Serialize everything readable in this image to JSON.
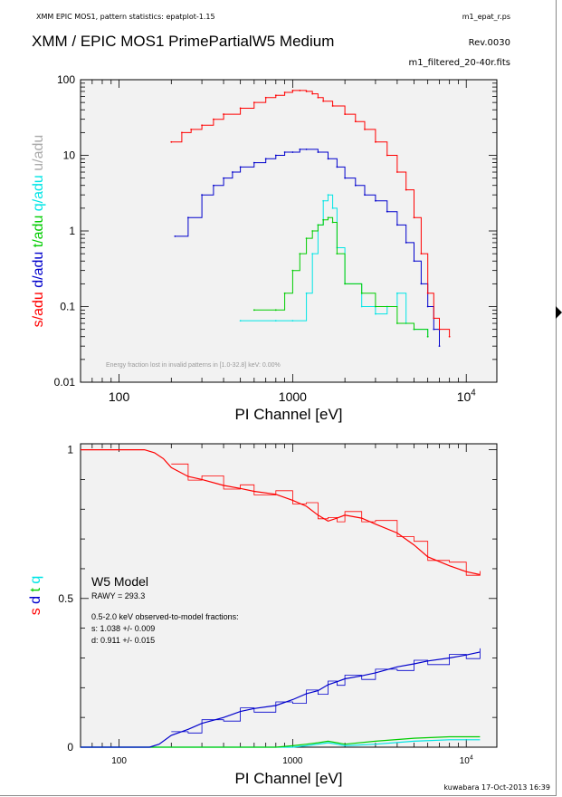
{
  "header": {
    "program": "XMM EPIC MOS1, pattern statistics: epatplot-1.15",
    "file": "m1_epat_r.ps",
    "title": "XMM / EPIC MOS1 PrimePartialW5 Medium",
    "rev": "Rev.0030",
    "input_file": "m1_filtered_20-40r.fits"
  },
  "footer": "kuwabara  17-Oct-2013 16:39",
  "colors": {
    "s": "#ff0000",
    "d": "#0000cc",
    "t": "#00cc00",
    "q": "#00e5e5",
    "u": "#aaaaaa",
    "bg": "#f2f2f2"
  },
  "chart_data": [
    {
      "type": "line",
      "xlabel": "PI Channel [eV]",
      "xscale": "log",
      "yscale": "log",
      "xlim": [
        60,
        15000
      ],
      "ylim": [
        0.01,
        100
      ],
      "xticks": [
        "100",
        "1000",
        "10^4"
      ],
      "yticks": [
        "0.01",
        "0.1",
        "1",
        "10",
        "100"
      ],
      "ylabels": [
        {
          "text": "s/adu",
          "color": "#ff0000"
        },
        {
          "text": "d/adu",
          "color": "#0000cc"
        },
        {
          "text": "t/adu",
          "color": "#00cc00"
        },
        {
          "text": "q/adu",
          "color": "#00e5e5"
        },
        {
          "text": "u/adu",
          "color": "#aaaaaa"
        }
      ],
      "annotation": "Energy fraction lost in invalid patterns in [1.0-32.8] keV:  0.00%",
      "series": [
        {
          "key": "s",
          "color": "#ff0000",
          "x": [
            200,
            230,
            260,
            300,
            350,
            400,
            500,
            600,
            700,
            800,
            900,
            1000,
            1100,
            1200,
            1300,
            1400,
            1500,
            1700,
            2000,
            2300,
            2600,
            3000,
            3500,
            4000,
            4500,
            5000,
            5500,
            6000,
            6500,
            7000,
            8000
          ],
          "y": [
            15,
            20,
            22,
            25,
            30,
            35,
            42,
            50,
            58,
            62,
            68,
            72,
            72,
            70,
            65,
            58,
            52,
            45,
            35,
            28,
            22,
            15,
            10,
            6,
            3.5,
            1.5,
            0.5,
            0.15,
            0.07,
            0.05,
            0.04
          ]
        },
        {
          "key": "d",
          "color": "#0000cc",
          "x": [
            210,
            250,
            300,
            350,
            400,
            450,
            500,
            600,
            700,
            800,
            900,
            1000,
            1100,
            1200,
            1400,
            1600,
            1800,
            2000,
            2300,
            2600,
            3000,
            3500,
            4000,
            4500,
            5000,
            5500,
            6000,
            6500,
            7000
          ],
          "y": [
            0.85,
            1.5,
            3,
            4,
            5,
            6,
            7,
            8,
            9,
            10,
            11,
            11,
            12,
            12,
            11,
            9,
            7,
            5,
            4,
            3,
            2.5,
            1.8,
            1.2,
            0.7,
            0.4,
            0.2,
            0.1,
            0.05,
            0.03
          ]
        },
        {
          "key": "t",
          "color": "#00cc00",
          "x": [
            600,
            800,
            900,
            1000,
            1100,
            1200,
            1300,
            1400,
            1500,
            1600,
            1700,
            1800,
            2000,
            2500,
            3000,
            4000,
            5000,
            6000
          ],
          "y": [
            0.09,
            0.09,
            0.15,
            0.3,
            0.5,
            0.8,
            1.0,
            1.2,
            1.4,
            1.5,
            1.3,
            0.5,
            0.2,
            0.15,
            0.1,
            0.06,
            0.05,
            0.04
          ]
        },
        {
          "key": "q",
          "color": "#00e5e5",
          "x": [
            500,
            800,
            1000,
            1200,
            1300,
            1400,
            1500,
            1600,
            1700,
            1800,
            2000,
            2500,
            3000,
            3500,
            4000,
            4500,
            5000,
            6000
          ],
          "y": [
            0.065,
            0.065,
            0.065,
            0.15,
            0.5,
            1.2,
            2.5,
            3.0,
            2.0,
            0.6,
            0.2,
            0.1,
            0.08,
            0.1,
            0.15,
            0.06,
            0.05,
            0.04
          ]
        }
      ]
    },
    {
      "type": "line",
      "xlabel": "PI Channel [eV]",
      "xscale": "log",
      "xlim": [
        60,
        15000
      ],
      "ylim": [
        0,
        1.02
      ],
      "xticks": [
        "100",
        "1000",
        "10^4"
      ],
      "yticks": [
        "0",
        "0.5",
        "1"
      ],
      "ylabels": [
        {
          "text": "s",
          "color": "#ff0000"
        },
        {
          "text": "d",
          "color": "#0000cc"
        },
        {
          "text": "t",
          "color": "#00cc00"
        },
        {
          "text": "q",
          "color": "#00e5e5"
        }
      ],
      "legend": {
        "title": "W5 Model",
        "rawy": "RAWY = 293.3",
        "line1": "0.5-2.0 keV observed-to-model fractions:",
        "line2": "s: 1.038 +/- 0.009",
        "line3": "d: 0.911 +/- 0.015"
      },
      "series": [
        {
          "key": "s",
          "color": "#ff0000",
          "x": [
            60,
            100,
            140,
            160,
            180,
            200,
            250,
            300,
            400,
            500,
            600,
            800,
            1000,
            1200,
            1400,
            1600,
            1800,
            2000,
            2500,
            3000,
            4000,
            5000,
            6000,
            8000,
            10000,
            12000
          ],
          "y": [
            1,
            1,
            1,
            0.99,
            0.97,
            0.94,
            0.91,
            0.9,
            0.88,
            0.87,
            0.86,
            0.85,
            0.83,
            0.81,
            0.78,
            0.76,
            0.77,
            0.78,
            0.77,
            0.75,
            0.72,
            0.68,
            0.64,
            0.61,
            0.59,
            0.58
          ]
        },
        {
          "key": "d",
          "color": "#0000cc",
          "x": [
            60,
            100,
            150,
            170,
            200,
            250,
            300,
            400,
            500,
            600,
            800,
            1000,
            1200,
            1400,
            1600,
            1800,
            2000,
            2500,
            3000,
            4000,
            5000,
            6000,
            8000,
            10000,
            12000
          ],
          "y": [
            0,
            0,
            0,
            0.01,
            0.04,
            0.06,
            0.08,
            0.1,
            0.12,
            0.13,
            0.14,
            0.16,
            0.18,
            0.19,
            0.21,
            0.22,
            0.23,
            0.24,
            0.25,
            0.27,
            0.28,
            0.29,
            0.3,
            0.31,
            0.32
          ]
        },
        {
          "key": "t",
          "color": "#00cc00",
          "x": [
            60,
            500,
            800,
            1000,
            1200,
            1400,
            1600,
            1800,
            2000,
            3000,
            5000,
            8000,
            12000
          ],
          "y": [
            0,
            0,
            0,
            0.005,
            0.01,
            0.015,
            0.02,
            0.015,
            0.01,
            0.02,
            0.03,
            0.035,
            0.035
          ]
        },
        {
          "key": "q",
          "color": "#00e5e5",
          "x": [
            60,
            500,
            800,
            1000,
            1200,
            1400,
            1600,
            1800,
            2000,
            3000,
            5000,
            8000,
            12000
          ],
          "y": [
            0,
            0,
            0,
            0,
            0.005,
            0.01,
            0.015,
            0.01,
            0.005,
            0.01,
            0.02,
            0.025,
            0.025
          ]
        }
      ]
    }
  ]
}
